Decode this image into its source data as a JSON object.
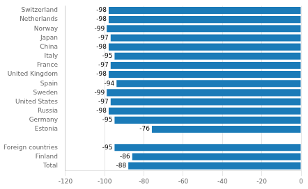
{
  "chart_data": {
    "type": "bar",
    "orientation": "horizontal",
    "categories": [
      "Switzerland",
      "Netherlands",
      "Norway",
      "Japan",
      "China",
      "Italy",
      "France",
      "United Kingdom",
      "Spain",
      "Sweden",
      "United States",
      "Russia",
      "Germany",
      "Estonia",
      null,
      "Foreign countries",
      "Finland",
      "Total"
    ],
    "values": [
      -98,
      -98,
      -99,
      -97,
      -98,
      -95,
      -97,
      -98,
      -94,
      -99,
      -97,
      -98,
      -95,
      -76,
      null,
      -95,
      -86,
      -88
    ],
    "color": "#1B7BB8",
    "xlim": [
      -120,
      0
    ],
    "xticks": [
      -120,
      -100,
      -80,
      -60,
      -40,
      -20,
      0
    ],
    "grid": true,
    "data_labels": true
  }
}
